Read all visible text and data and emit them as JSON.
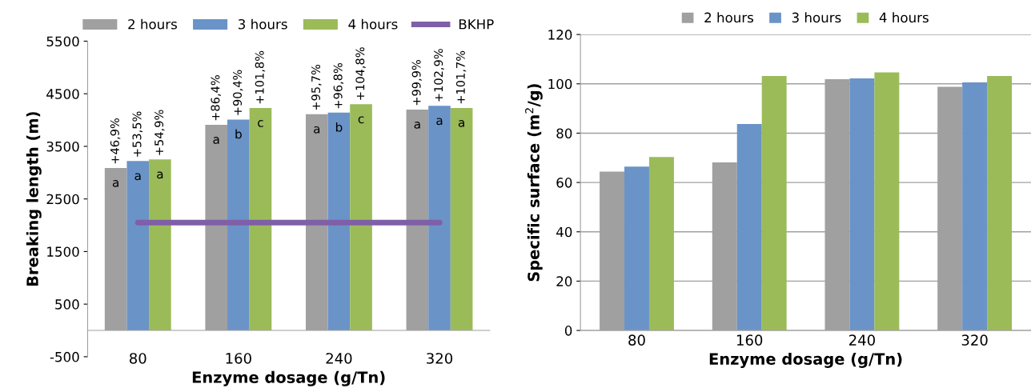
{
  "chart_data": [
    {
      "type": "bar",
      "xlabel": "Enzyme dosage (g/Tn)",
      "ylabel": "Breaking length (m)",
      "categories": [
        "80",
        "160",
        "240",
        "320"
      ],
      "series": [
        {
          "name": "2 hours",
          "color": "#a0a0a0",
          "values": [
            3090,
            3910,
            4110,
            4200
          ]
        },
        {
          "name": "3 hours",
          "color": "#6a93c8",
          "values": [
            3220,
            4010,
            4140,
            4270
          ]
        },
        {
          "name": "4 hours",
          "color": "#9bbb59",
          "values": [
            3250,
            4230,
            4300,
            4230
          ]
        },
        {
          "name": "BKHP",
          "type": "line",
          "color": "#7f5fa8",
          "values": [
            2050,
            2050,
            2050,
            2050
          ]
        }
      ],
      "annotations": [
        "+46,9%",
        "+53,5%",
        "+54,9%",
        "+86,4%",
        "+90,4%",
        "+101,8%",
        "+95,7%",
        "+96,8%",
        "+104,8%",
        "+99,9%",
        "+102,9%",
        "+101,7%",
        "a",
        "a",
        "a",
        "a",
        "b",
        "c",
        "a",
        "b",
        "c",
        "a",
        "a",
        "a"
      ],
      "ylim": [
        -500,
        5500
      ],
      "yticks": [
        -500,
        500,
        1500,
        2500,
        3500,
        4500,
        5500
      ],
      "grid": false,
      "legend": "top"
    },
    {
      "type": "bar",
      "xlabel": "Enzyme dosage (g/Tn)",
      "ylabel": "Specific surface (m$^{2}$/g)",
      "categories": [
        "80",
        "160",
        "240",
        "320"
      ],
      "series": [
        {
          "name": "2 hours",
          "color": "#a0a0a0",
          "values": [
            64.4,
            68.1,
            101.9,
            98.8
          ]
        },
        {
          "name": "3 hours",
          "color": "#6a93c8",
          "values": [
            66.4,
            83.7,
            102.2,
            100.6
          ]
        },
        {
          "name": "4 hours",
          "color": "#9bbb59",
          "values": [
            70.3,
            103.2,
            104.6,
            103.2
          ]
        }
      ],
      "ylim": [
        0,
        120
      ],
      "yticks": [
        0,
        20,
        40,
        60,
        80,
        100,
        120
      ],
      "grid": "y",
      "legend": "top"
    }
  ]
}
